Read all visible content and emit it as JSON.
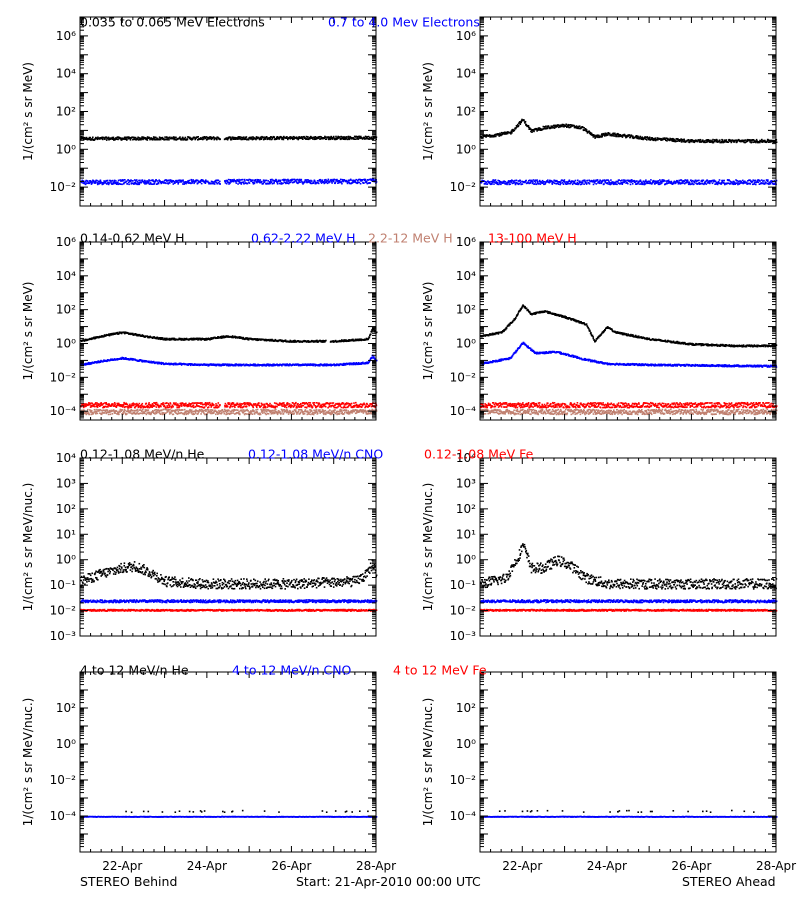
{
  "footer": {
    "left": "STEREO Behind",
    "center": "Start: 21-Apr-2010 00:00 UTC",
    "right": "STEREO Ahead"
  },
  "x_axis": {
    "range": [
      "2010-04-21",
      "2010-04-28"
    ],
    "tick_labels": [
      "22-Apr",
      "24-Apr",
      "26-Apr",
      "28-Apr"
    ],
    "tick_days": [
      1,
      3,
      5,
      7
    ]
  },
  "colors": {
    "black": "#000000",
    "blue": "#0000ff",
    "tan": "#c08070",
    "red": "#ff0000"
  },
  "rows": [
    {
      "ylabel": "1/(cm² s sr MeV)",
      "legend": [
        {
          "text": "0.035 to 0.065 MeV Electrons",
          "color": "#000000"
        },
        {
          "text": "0.7 to 4.0 Mev Electrons",
          "color": "#0000ff"
        }
      ]
    },
    {
      "ylabel": "1/(cm² s sr MeV)",
      "legend": [
        {
          "text": "0.14-0.62 MeV H",
          "color": "#000000"
        },
        {
          "text": "0.62-2.22 MeV H",
          "color": "#0000ff"
        },
        {
          "text": "2.2-12 MeV H",
          "color": "#c08070"
        },
        {
          "text": "13-100 MeV H",
          "color": "#ff0000"
        }
      ]
    },
    {
      "ylabel": "1/(cm² s sr MeV/nuc.)",
      "legend": [
        {
          "text": "0.12-1.08 MeV/n He",
          "color": "#000000"
        },
        {
          "text": "0.12-1.08 MeV/n CNO",
          "color": "#0000ff"
        },
        {
          "text": "0.12-1.08 MeV Fe",
          "color": "#ff0000"
        }
      ]
    },
    {
      "ylabel": "1/(cm² s sr MeV/nuc.)",
      "legend": [
        {
          "text": "4 to 12 MeV/n He",
          "color": "#000000"
        },
        {
          "text": "4 to 12 MeV/n CNO",
          "color": "#0000ff"
        },
        {
          "text": "4 to 12 MeV Fe",
          "color": "#ff0000"
        }
      ]
    }
  ],
  "chart_data": [
    {
      "type": "scatter",
      "spacecraft": "STEREO Behind",
      "ylog": true,
      "ylim": [
        0.001,
        10000000
      ],
      "ytick_exps": [
        -2,
        0,
        2,
        4,
        6
      ],
      "series": [
        {
          "name": "0.035 to 0.065 MeV Electrons",
          "color": "#000000",
          "spread": 0.08,
          "x": [
            0,
            7
          ],
          "y": [
            4,
            4.5
          ],
          "gaps": [
            [
              3.3,
              3.4
            ]
          ]
        },
        {
          "name": "0.7 to 4.0 Mev Electrons",
          "color": "#0000ff",
          "spread": 0.12,
          "x": [
            0,
            7
          ],
          "y": [
            0.02,
            0.022
          ],
          "gaps": [
            [
              3.3,
              3.4
            ]
          ]
        }
      ]
    },
    {
      "type": "scatter",
      "spacecraft": "STEREO Ahead",
      "ylog": true,
      "ylim": [
        0.001,
        10000000
      ],
      "ytick_exps": [
        -2,
        0,
        2,
        4,
        6
      ],
      "series": [
        {
          "name": "0.035 to 0.065 MeV Electrons",
          "color": "#000000",
          "spread": 0.08,
          "x": [
            0,
            0.7,
            1.0,
            1.2,
            1.5,
            2.0,
            2.4,
            2.7,
            3.0,
            4.0,
            5.0,
            7.0
          ],
          "y": [
            5,
            8,
            40,
            10,
            15,
            20,
            15,
            5,
            7,
            4,
            3,
            3
          ],
          "gaps": []
        },
        {
          "name": "0.7 to 4.0 Mev Electrons",
          "color": "#0000ff",
          "spread": 0.12,
          "x": [
            0,
            7
          ],
          "y": [
            0.02,
            0.02
          ],
          "gaps": []
        }
      ]
    },
    {
      "type": "scatter",
      "spacecraft": "STEREO Behind",
      "ylog": true,
      "ylim": [
        3e-05,
        1000000
      ],
      "ytick_exps": [
        -4,
        -2,
        0,
        2,
        4,
        6
      ],
      "series": [
        {
          "name": "0.14-0.62 MeV H",
          "color": "#000000",
          "spread": 0.05,
          "x": [
            0,
            0.5,
            1.0,
            1.5,
            2.0,
            3.0,
            3.5,
            4.0,
            5.0,
            6.0,
            6.8,
            6.9,
            7.0
          ],
          "y": [
            1.5,
            3,
            5,
            3,
            2,
            2,
            3,
            2,
            1.5,
            1.5,
            2,
            8,
            5
          ],
          "gaps": [
            [
              5.8,
              5.9
            ]
          ]
        },
        {
          "name": "0.62-2.22 MeV H",
          "color": "#0000ff",
          "spread": 0.05,
          "x": [
            0,
            0.5,
            1.0,
            1.5,
            2.0,
            3.0,
            4.0,
            5.0,
            6.0,
            6.8,
            6.9,
            7.0
          ],
          "y": [
            0.06,
            0.1,
            0.15,
            0.1,
            0.07,
            0.06,
            0.06,
            0.06,
            0.06,
            0.08,
            0.2,
            0.1
          ],
          "gaps": []
        },
        {
          "name": "2.2-12 MeV H",
          "color": "#c08070",
          "spread": 0.15,
          "x": [
            0,
            7
          ],
          "y": [
            0.0001,
            0.0001
          ],
          "gaps": []
        },
        {
          "name": "13-100 MeV H",
          "color": "#ff0000",
          "spread": 0.15,
          "x": [
            0,
            7
          ],
          "y": [
            0.00025,
            0.00025
          ],
          "gaps": [
            [
              3.3,
              3.4
            ]
          ]
        }
      ]
    },
    {
      "type": "scatter",
      "spacecraft": "STEREO Ahead",
      "ylog": true,
      "ylim": [
        3e-05,
        1000000
      ],
      "ytick_exps": [
        -4,
        -2,
        0,
        2,
        4,
        6
      ],
      "series": [
        {
          "name": "0.14-0.62 MeV H",
          "color": "#000000",
          "spread": 0.05,
          "x": [
            0,
            0.5,
            0.8,
            1.0,
            1.2,
            1.5,
            2.0,
            2.5,
            2.7,
            2.8,
            3.0,
            3.2,
            4.0,
            5.0,
            6.0,
            7.0
          ],
          "y": [
            3,
            5,
            30,
            200,
            60,
            90,
            40,
            15,
            1.5,
            3,
            10,
            5,
            2,
            1,
            0.8,
            0.8
          ],
          "gaps": []
        },
        {
          "name": "0.62-2.22 MeV H",
          "color": "#0000ff",
          "spread": 0.05,
          "x": [
            0,
            0.7,
            1.0,
            1.3,
            1.8,
            2.5,
            3.0,
            4.0,
            7.0
          ],
          "y": [
            0.07,
            0.15,
            1.2,
            0.3,
            0.35,
            0.12,
            0.07,
            0.06,
            0.05
          ],
          "gaps": []
        },
        {
          "name": "2.2-12 MeV H",
          "color": "#c08070",
          "spread": 0.15,
          "x": [
            0,
            7
          ],
          "y": [
            0.0001,
            0.0001
          ],
          "gaps": []
        },
        {
          "name": "13-100 MeV H",
          "color": "#ff0000",
          "spread": 0.15,
          "x": [
            0,
            7
          ],
          "y": [
            0.00025,
            0.00025
          ],
          "gaps": []
        }
      ]
    },
    {
      "type": "scatter",
      "spacecraft": "STEREO Behind",
      "ylog": true,
      "ylim": [
        0.001,
        10000
      ],
      "ytick_exps": [
        -3,
        -2,
        -1,
        0,
        1,
        2,
        3,
        4
      ],
      "series": [
        {
          "name": "0.12-1.08 MeV/n He",
          "color": "#000000",
          "spread": 0.2,
          "x": [
            0,
            0.5,
            1.0,
            1.3,
            1.7,
            2.0,
            3.0,
            5.0,
            6.5,
            6.8,
            6.9,
            7.0
          ],
          "y": [
            0.15,
            0.3,
            0.5,
            0.6,
            0.3,
            0.15,
            0.12,
            0.12,
            0.15,
            0.3,
            0.8,
            0.3
          ],
          "gaps": []
        },
        {
          "name": "0.12-1.08 MeV/n CNO",
          "color": "#0000ff",
          "spread": 0.05,
          "x": [
            0,
            7
          ],
          "y": [
            0.025,
            0.025
          ],
          "gaps": []
        },
        {
          "name": "0.12-1.08 MeV Fe",
          "color": "#ff0000",
          "spread": 0.03,
          "x": [
            0,
            7
          ],
          "y": [
            0.011,
            0.011
          ],
          "gaps": []
        }
      ]
    },
    {
      "type": "scatter",
      "spacecraft": "STEREO Ahead",
      "ylog": true,
      "ylim": [
        0.001,
        10000
      ],
      "ytick_exps": [
        -3,
        -2,
        -1,
        0,
        1,
        2,
        3,
        4
      ],
      "series": [
        {
          "name": "0.12-1.08 MeV/n He",
          "color": "#000000",
          "spread": 0.2,
          "x": [
            0,
            0.6,
            0.9,
            1.0,
            1.2,
            1.5,
            1.8,
            2.0,
            2.2,
            2.5,
            3.0,
            7.0
          ],
          "y": [
            0.12,
            0.2,
            1.5,
            4,
            0.5,
            0.5,
            1,
            0.8,
            0.5,
            0.2,
            0.12,
            0.12
          ],
          "gaps": []
        },
        {
          "name": "0.12-1.08 MeV/n CNO",
          "color": "#0000ff",
          "spread": 0.05,
          "x": [
            0,
            7
          ],
          "y": [
            0.025,
            0.025
          ],
          "gaps": []
        },
        {
          "name": "0.12-1.08 MeV Fe",
          "color": "#ff0000",
          "spread": 0.03,
          "x": [
            0,
            7
          ],
          "y": [
            0.011,
            0.011
          ],
          "gaps": []
        }
      ]
    },
    {
      "type": "scatter",
      "spacecraft": "STEREO Behind",
      "ylog": true,
      "ylim": [
        1e-06,
        10000
      ],
      "ytick_exps": [
        -4,
        -2,
        0,
        2
      ],
      "series": [
        {
          "name": "4 to 12 MeV/n He",
          "color": "#000000",
          "spread": 0.05,
          "sparse": true,
          "x": [
            0,
            7
          ],
          "y": [
            0.0002,
            0.0002
          ],
          "gaps": []
        },
        {
          "name": "4 to 12 MeV/n CNO",
          "color": "#0000ff",
          "spread": 0.01,
          "x": [
            0,
            7
          ],
          "y": [
            0.0001,
            0.0001
          ],
          "gaps": []
        }
      ]
    },
    {
      "type": "scatter",
      "spacecraft": "STEREO Ahead",
      "ylog": true,
      "ylim": [
        1e-06,
        10000
      ],
      "ytick_exps": [
        -4,
        -2,
        0,
        2
      ],
      "series": [
        {
          "name": "4 to 12 MeV/n He",
          "color": "#000000",
          "spread": 0.05,
          "sparse": true,
          "x": [
            0,
            7
          ],
          "y": [
            0.0002,
            0.0002
          ],
          "gaps": []
        },
        {
          "name": "4 to 12 MeV/n CNO",
          "color": "#0000ff",
          "spread": 0.01,
          "x": [
            0,
            7
          ],
          "y": [
            0.0001,
            0.0001
          ],
          "gaps": []
        }
      ]
    }
  ]
}
